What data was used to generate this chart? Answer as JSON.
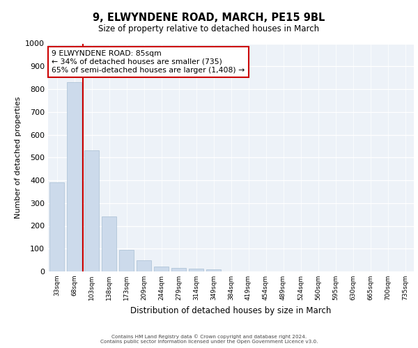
{
  "title1": "9, ELWYNDENE ROAD, MARCH, PE15 9BL",
  "title2": "Size of property relative to detached houses in March",
  "xlabel": "Distribution of detached houses by size in March",
  "ylabel": "Number of detached properties",
  "bar_labels": [
    "33sqm",
    "68sqm",
    "103sqm",
    "138sqm",
    "173sqm",
    "209sqm",
    "244sqm",
    "279sqm",
    "314sqm",
    "349sqm",
    "384sqm",
    "419sqm",
    "454sqm",
    "489sqm",
    "524sqm",
    "560sqm",
    "595sqm",
    "630sqm",
    "665sqm",
    "700sqm",
    "735sqm"
  ],
  "bar_values": [
    390,
    830,
    530,
    240,
    95,
    50,
    20,
    15,
    12,
    8,
    0,
    0,
    0,
    0,
    0,
    0,
    0,
    0,
    0,
    0,
    0
  ],
  "bar_color": "#ccdaeb",
  "bar_edge_color": "#a8bfd4",
  "ylim": [
    0,
    1000
  ],
  "yticks": [
    0,
    100,
    200,
    300,
    400,
    500,
    600,
    700,
    800,
    900,
    1000
  ],
  "annotation_text": "9 ELWYNDENE ROAD: 85sqm\n← 34% of detached houses are smaller (735)\n65% of semi-detached houses are larger (1,408) →",
  "annotation_box_color": "#ffffff",
  "annotation_box_edge": "#cc0000",
  "red_line_color": "#cc0000",
  "background_color": "#edf2f8",
  "footer1": "Contains HM Land Registry data © Crown copyright and database right 2024.",
  "footer2": "Contains public sector information licensed under the Open Government Licence v3.0."
}
